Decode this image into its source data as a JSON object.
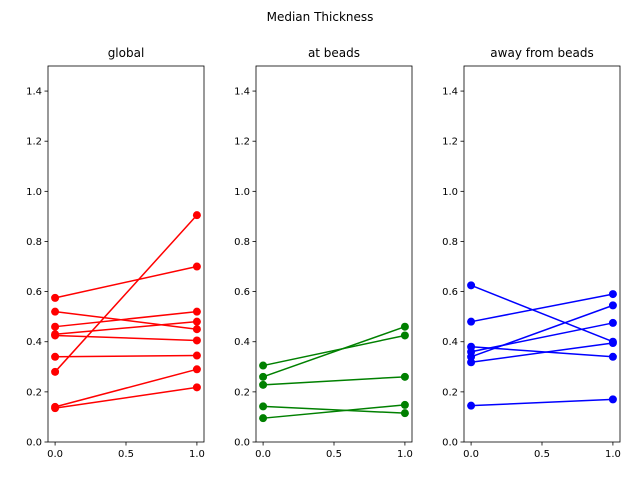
{
  "figure": {
    "suptitle": "Median Thickness"
  },
  "chart_data": [
    {
      "type": "line",
      "title": "global",
      "color": "#ff0000",
      "xlim": [
        -0.05,
        1.05
      ],
      "ylim": [
        0,
        1.5
      ],
      "xticks": [
        0.0,
        0.5,
        1.0
      ],
      "xtick_labels": [
        "0.0",
        "0.5",
        "1.0"
      ],
      "yticks": [
        0.0,
        0.2,
        0.4,
        0.6,
        0.8,
        1.0,
        1.2,
        1.4
      ],
      "ytick_labels": [
        "0.0",
        "0.2",
        "0.4",
        "0.6",
        "0.8",
        "1.0",
        "1.2",
        "1.4"
      ],
      "series": [
        {
          "x": [
            0,
            1
          ],
          "y": [
            0.575,
            0.7
          ]
        },
        {
          "x": [
            0,
            1
          ],
          "y": [
            0.52,
            0.45
          ]
        },
        {
          "x": [
            0,
            1
          ],
          "y": [
            0.46,
            0.52
          ]
        },
        {
          "x": [
            0,
            1
          ],
          "y": [
            0.43,
            0.48
          ]
        },
        {
          "x": [
            0,
            1
          ],
          "y": [
            0.425,
            0.405
          ]
        },
        {
          "x": [
            0,
            1
          ],
          "y": [
            0.34,
            0.345
          ]
        },
        {
          "x": [
            0,
            1
          ],
          "y": [
            0.28,
            0.905
          ]
        },
        {
          "x": [
            0,
            1
          ],
          "y": [
            0.14,
            0.29
          ]
        },
        {
          "x": [
            0,
            1
          ],
          "y": [
            0.135,
            0.218
          ]
        }
      ]
    },
    {
      "type": "line",
      "title": "at beads",
      "color": "#008000",
      "xlim": [
        -0.05,
        1.05
      ],
      "ylim": [
        0,
        1.5
      ],
      "xticks": [
        0.0,
        0.5,
        1.0
      ],
      "xtick_labels": [
        "0.0",
        "0.5",
        "1.0"
      ],
      "yticks": [
        0.0,
        0.2,
        0.4,
        0.6,
        0.8,
        1.0,
        1.2,
        1.4
      ],
      "ytick_labels": [
        "0.0",
        "0.2",
        "0.4",
        "0.6",
        "0.8",
        "1.0",
        "1.2",
        "1.4"
      ],
      "series": [
        {
          "x": [
            0,
            1
          ],
          "y": [
            0.305,
            0.425
          ]
        },
        {
          "x": [
            0,
            1
          ],
          "y": [
            0.26,
            0.46
          ]
        },
        {
          "x": [
            0,
            1
          ],
          "y": [
            0.228,
            0.26
          ]
        },
        {
          "x": [
            0,
            1
          ],
          "y": [
            0.142,
            0.115
          ]
        },
        {
          "x": [
            0,
            1
          ],
          "y": [
            0.095,
            0.148
          ]
        }
      ]
    },
    {
      "type": "line",
      "title": "away from beads",
      "color": "#0000ff",
      "xlim": [
        -0.05,
        1.05
      ],
      "ylim": [
        0,
        1.5
      ],
      "xticks": [
        0.0,
        0.5,
        1.0
      ],
      "xtick_labels": [
        "0.0",
        "0.5",
        "1.0"
      ],
      "yticks": [
        0.0,
        0.2,
        0.4,
        0.6,
        0.8,
        1.0,
        1.2,
        1.4
      ],
      "ytick_labels": [
        "0.0",
        "0.2",
        "0.4",
        "0.6",
        "0.8",
        "1.0",
        "1.2",
        "1.4"
      ],
      "series": [
        {
          "x": [
            0,
            1
          ],
          "y": [
            0.625,
            0.4
          ]
        },
        {
          "x": [
            0,
            1
          ],
          "y": [
            0.48,
            0.59
          ]
        },
        {
          "x": [
            0,
            1
          ],
          "y": [
            0.38,
            0.34
          ]
        },
        {
          "x": [
            0,
            1
          ],
          "y": [
            0.36,
            0.475
          ]
        },
        {
          "x": [
            0,
            1
          ],
          "y": [
            0.34,
            0.545
          ]
        },
        {
          "x": [
            0,
            1
          ],
          "y": [
            0.318,
            0.395
          ]
        },
        {
          "x": [
            0,
            1
          ],
          "y": [
            0.145,
            0.17
          ]
        }
      ]
    }
  ]
}
